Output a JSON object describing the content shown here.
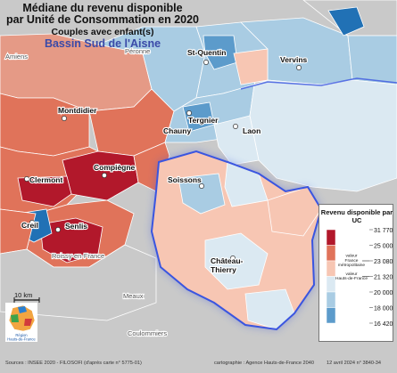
{
  "title": {
    "line1": "Médiane du revenu disponible",
    "line2": "par Unité de Consommation en 2020",
    "line3": "Couples avec enfant(s)",
    "line4": "Bassin Sud de l'Aisne"
  },
  "places": [
    {
      "name": "Amiens",
      "kind": "outside"
    },
    {
      "name": "Péronne",
      "kind": "outside"
    },
    {
      "name": "St-Quentin",
      "kind": "city"
    },
    {
      "name": "Vervins",
      "kind": "city"
    },
    {
      "name": "Montdidier",
      "kind": "city"
    },
    {
      "name": "Tergnier",
      "kind": "city"
    },
    {
      "name": "Chauny",
      "kind": "city"
    },
    {
      "name": "Laon",
      "kind": "city"
    },
    {
      "name": "Compiègne",
      "kind": "city"
    },
    {
      "name": "Clermont",
      "kind": "city"
    },
    {
      "name": "Soissons",
      "kind": "city"
    },
    {
      "name": "Creil",
      "kind": "city"
    },
    {
      "name": "Senlis",
      "kind": "city"
    },
    {
      "name": "Château-\nThierry",
      "kind": "city"
    },
    {
      "name": "Roissy-en-France",
      "kind": "outside"
    },
    {
      "name": "Meaux",
      "kind": "outside"
    },
    {
      "name": "Coulommiers",
      "kind": "outside"
    }
  ],
  "legend": {
    "title": "Revenu disponible par UC",
    "classes": [
      {
        "label": "31 770",
        "color": "#b2182b"
      },
      {
        "label": "25 000",
        "color": "#e0735a"
      },
      {
        "label": "23 080",
        "color": "#f7c6b3"
      },
      {
        "label": "21 320",
        "color": "#dbe9f2"
      },
      {
        "label": "20 000",
        "color": "#a9cce3"
      },
      {
        "label": "18 000",
        "color": "#5c9bcb"
      },
      {
        "label": "16 420",
        "color": "#2171b5"
      }
    ],
    "references": [
      {
        "label": "valeur France métropolitaine",
        "value_label": "23 080"
      },
      {
        "label": "valeur Hauts-de-France",
        "value_label": "21 320"
      }
    ]
  },
  "scale": {
    "label": "10 km"
  },
  "logo": {
    "text": "Région Hauts-de-France"
  },
  "footer": {
    "sources": "Sources : INSEE 2020 - FILOSOFI (d'après carte n° 5775-01)",
    "credit": "cartographie : Agence Hauts-de-France 2040",
    "date": "12 avril 2024 n° 3840-34"
  },
  "colors": {
    "outside": "#c9c9c9",
    "boundary": "#3a55e0",
    "very_high": "#b2182b",
    "high": "#e0735a",
    "mid_high": "#f7c6b3",
    "mid_low": "#dbe9f2",
    "low": "#a9cce3",
    "lower": "#5c9bcb",
    "lowest": "#2171b5"
  }
}
